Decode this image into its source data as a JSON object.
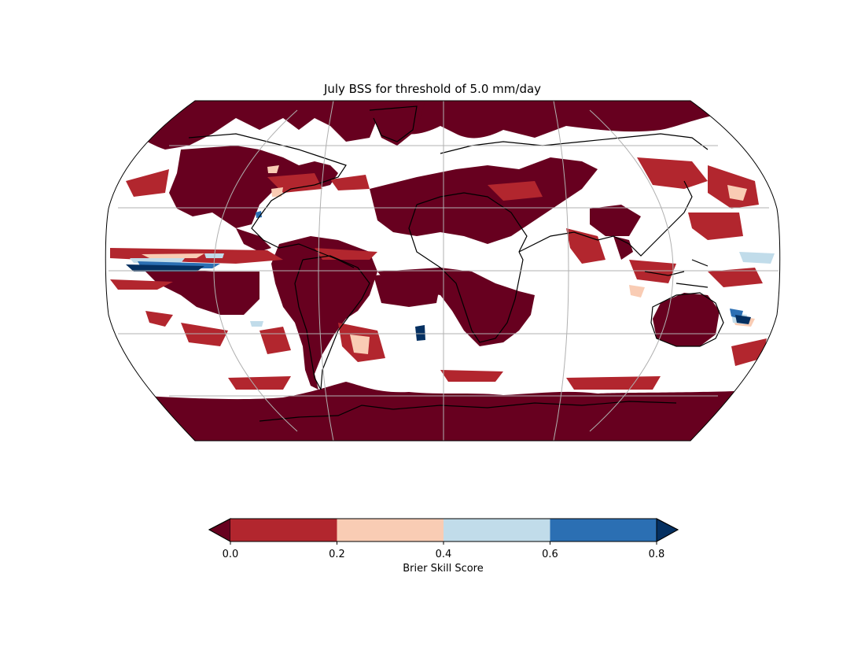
{
  "title": "July BSS for threshold of 5.0 mm/day",
  "projection": "robinson",
  "graticule": {
    "shown": true,
    "color": "#b0b0b0"
  },
  "colors": {
    "ocean": "#ffffff",
    "land_low_skill": "#67001f",
    "coastline": "#000000",
    "map_border": "#000000"
  },
  "colorbar": {
    "label": "Brier Skill Score",
    "orientation": "horizontal",
    "extend": "both",
    "ticks": [
      "0.0",
      "0.2",
      "0.4",
      "0.6",
      "0.8"
    ],
    "boundaries": [
      0.0,
      0.2,
      0.4,
      0.6,
      0.8
    ],
    "bins": [
      {
        "from": 0.0,
        "to": 0.2,
        "color": "#b2262e"
      },
      {
        "from": 0.2,
        "to": 0.4,
        "color": "#f9ccb4"
      },
      {
        "from": 0.4,
        "to": 0.6,
        "color": "#c1dcea"
      },
      {
        "from": 0.6,
        "to": 0.8,
        "color": "#2b6fb3"
      }
    ],
    "under_color": "#67001f",
    "over_color": "#053061"
  }
}
